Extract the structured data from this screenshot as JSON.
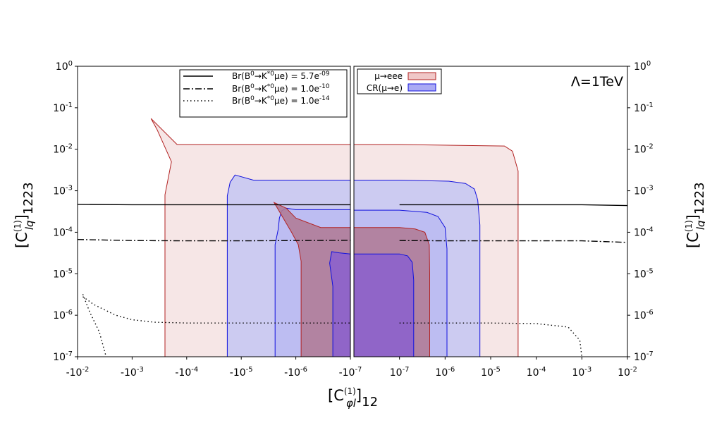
{
  "chart_data": {
    "type": "contour",
    "annotation": "Λ=1TeV",
    "xlabel": {
      "main": "[C",
      "sup": "(1)",
      "sub": "φl",
      "tail": "]",
      "index": "12"
    },
    "ylabel": {
      "main": "[C",
      "sup": "(1)",
      "sub": "lq",
      "tail": "]",
      "index": "1223"
    },
    "x_ticks": [
      {
        "x": -0.01,
        "base": "-10",
        "exp": "-2"
      },
      {
        "x": -0.001,
        "base": "-10",
        "exp": "-3"
      },
      {
        "x": -0.0001,
        "base": "-10",
        "exp": "-4"
      },
      {
        "x": -1e-05,
        "base": "-10",
        "exp": "-5"
      },
      {
        "x": -1e-06,
        "base": "-10",
        "exp": "-6"
      },
      {
        "x": -1e-07,
        "base": "-10",
        "exp": "-7"
      },
      {
        "x": 1e-07,
        "base": "10",
        "exp": "-7"
      },
      {
        "x": 1e-06,
        "base": "10",
        "exp": "-6"
      },
      {
        "x": 1e-05,
        "base": "10",
        "exp": "-5"
      },
      {
        "x": 0.0001,
        "base": "10",
        "exp": "-4"
      },
      {
        "x": 0.001,
        "base": "10",
        "exp": "-3"
      },
      {
        "x": 0.01,
        "base": "10",
        "exp": "-2"
      }
    ],
    "y_ticks": [
      {
        "y": 1,
        "base": "10",
        "exp": "0"
      },
      {
        "y": 0.1,
        "base": "10",
        "exp": "-1"
      },
      {
        "y": 0.01,
        "base": "10",
        "exp": "-2"
      },
      {
        "y": 0.001,
        "base": "10",
        "exp": "-3"
      },
      {
        "y": 0.0001,
        "base": "10",
        "exp": "-4"
      },
      {
        "y": 1e-05,
        "base": "10",
        "exp": "-5"
      },
      {
        "y": 1e-06,
        "base": "10",
        "exp": "-6"
      },
      {
        "y": 1e-07,
        "base": "10",
        "exp": "-7"
      }
    ],
    "x_scale": "symmetric log",
    "y_scale": "log",
    "xlim": [
      -0.01,
      0.01
    ],
    "ylim": [
      1e-07,
      1
    ],
    "colors": {
      "mu_eee_fill": "#f5e3e3",
      "mu_eee_edge": "#b22222",
      "cr_fill": "#c8c8f2",
      "cr_edge": "#1111dd",
      "dark_red_fill": "#b07c98",
      "dark_blue_fill": "#8c62cc"
    },
    "legend_br": [
      {
        "name": "Br(B⁰→K*⁰μe) = 5.7e-09",
        "pre": "Br(B",
        "sup1": "0",
        "mid": "→K",
        "sup2": "*0",
        "post": "μe) = 5.7e",
        "sup3": "-09",
        "style": "solid"
      },
      {
        "name": "Br(B⁰→K*⁰μe) = 1.0e-10",
        "pre": "Br(B",
        "sup1": "0",
        "mid": "→K",
        "sup2": "*0",
        "post": "μe) = 1.0e",
        "sup3": "-10",
        "style": "dashdot"
      },
      {
        "name": "Br(B⁰→K*⁰μe) = 1.0e-14",
        "pre": "Br(B",
        "sup1": "0",
        "mid": "→K",
        "sup2": "*0",
        "post": "μe) = 1.0e",
        "sup3": "-14",
        "style": "dotted"
      }
    ],
    "legend_regions": [
      {
        "name": "μ→eee",
        "fill": "#f0c8c8",
        "edge": "#b22222"
      },
      {
        "name": "CR(μ→e)",
        "fill": "#aaaaf4",
        "edge": "#1111dd"
      }
    ],
    "br_lines": [
      {
        "name": "Br(B⁰→K*⁰μe) = 5.7e-09",
        "style": "solid",
        "x": [
          -0.01,
          -0.001,
          -0.0001,
          -1e-05,
          -1e-06,
          -1e-07,
          1e-07,
          1e-06,
          1e-05,
          0.0001,
          0.001,
          0.01
        ],
        "y": [
          0.00047,
          0.00046,
          0.00046,
          0.00046,
          0.00046,
          0.00046,
          0.00046,
          0.00046,
          0.00046,
          0.00046,
          0.00046,
          0.00044
        ]
      },
      {
        "name": "Br(B⁰→K*⁰μe) = 1.0e-10",
        "style": "dashdot",
        "x": [
          -0.01,
          -0.001,
          -0.0001,
          -1e-05,
          -1e-06,
          -1e-07,
          1e-07,
          1e-06,
          1e-05,
          0.0001,
          0.001,
          0.01
        ],
        "y": [
          6.7e-05,
          6.3e-05,
          6.2e-05,
          6.2e-05,
          6.3e-05,
          6.4e-05,
          6.3e-05,
          6.2e-05,
          6.2e-05,
          6.2e-05,
          6.2e-05,
          5.7e-05
        ]
      },
      {
        "name": "Br(B⁰→K*⁰μe) = 1.0e-14",
        "style": "dotted",
        "x": [
          -0.008,
          -0.005,
          -0.002,
          -0.001,
          -0.0004,
          -0.0001,
          -1e-05,
          -1e-06,
          -1e-07,
          1e-07,
          1e-06,
          1e-05,
          0.0001,
          0.0005,
          0.0009,
          0.001
        ],
        "y": [
          2.8e-06,
          1.8e-06,
          1e-06,
          7.8e-07,
          6.8e-07,
          6.5e-07,
          6.5e-07,
          6.5e-07,
          6.5e-07,
          6.5e-07,
          6.5e-07,
          6.5e-07,
          6.3e-07,
          5.2e-07,
          2.5e-07,
          1e-07
        ]
      },
      {
        "name": "Br(B⁰→K*⁰μe) = 1.0e-14",
        "style": "dotted",
        "x": [
          -0.008,
          -0.006,
          -0.004,
          -0.003
        ],
        "y": [
          3.2e-06,
          1.2e-06,
          4e-07,
          1e-07
        ]
      }
    ],
    "regions": [
      {
        "name": "μ→eee",
        "fill": "#f5e3e3",
        "edge": "#b22222",
        "x": [
          -0.00025,
          -0.00025,
          -0.00019,
          -0.00035,
          -0.00045,
          -0.00015,
          -8e-05,
          -1e-07,
          1e-07,
          2e-05,
          3e-05,
          4e-05,
          4e-05,
          4e-05
        ],
        "y": [
          1e-07,
          0.0008,
          0.005,
          0.03,
          0.055,
          0.013,
          0.013,
          0.013,
          0.013,
          0.012,
          0.009,
          0.003,
          0.0006,
          1e-07
        ]
      },
      {
        "name": "CR(μ→e)",
        "fill": "#c8c8f2",
        "edge": "#1111dd",
        "x": [
          -1.8e-05,
          -1.8e-05,
          -1.6e-05,
          -1.3e-05,
          -6e-06,
          -1e-07,
          1e-07,
          1.2e-06,
          2.8e-06,
          4.4e-06,
          5.2e-06,
          5.8e-06,
          5.8e-06
        ],
        "y": [
          1e-07,
          0.00075,
          0.0016,
          0.0024,
          0.0018,
          0.0018,
          0.0018,
          0.0017,
          0.0015,
          0.0011,
          0.0006,
          0.00015,
          1e-07
        ]
      },
      {
        "name": "CR(μ→e)",
        "fill": "#bbbbf2",
        "edge": "#1111dd",
        "x": [
          -2.4e-06,
          -2.4e-06,
          -2.1e-06,
          -2e-06,
          -1.8e-06,
          -1.5e-06,
          -1e-06,
          -1e-07,
          1e-07,
          4e-07,
          7e-07,
          1e-06,
          1.1e-06,
          1.1e-06
        ],
        "y": [
          1e-07,
          5e-05,
          0.00012,
          0.00022,
          0.00033,
          0.00038,
          0.00035,
          0.00035,
          0.00034,
          0.0003,
          0.00024,
          0.00013,
          4e-05,
          1e-07
        ]
      },
      {
        "name": "μ→eee",
        "fill": "#b07c98",
        "edge": "#b22222",
        "x": [
          -8e-07,
          -8e-07,
          -9e-07,
          -1.2e-06,
          -2.5e-06,
          -1.5e-06,
          -1e-06,
          -3.5e-07,
          -1e-07,
          1e-07,
          2.2e-07,
          3.6e-07,
          4.5e-07,
          4.6e-07,
          4.6e-07
        ],
        "y": [
          1e-07,
          2e-05,
          5e-05,
          0.0001,
          0.00052,
          0.00038,
          0.00022,
          0.00013,
          0.00013,
          0.00013,
          0.00012,
          0.0001,
          5e-05,
          1e-05,
          1e-07
        ]
      },
      {
        "name": "CR(μ→e)",
        "fill": "#8c62cc",
        "edge": "#1111dd",
        "x": [
          -2.1e-07,
          -2.1e-07,
          -2.4e-07,
          -2.2e-07,
          -1.6e-07,
          -1e-07,
          1e-07,
          1.5e-07,
          1.9e-07,
          2.05e-07,
          2.05e-07
        ],
        "y": [
          1e-07,
          5e-06,
          1.8e-05,
          3.4e-05,
          3.2e-05,
          3e-05,
          3e-05,
          2.7e-05,
          1.9e-05,
          7e-06,
          1e-07
        ]
      }
    ]
  }
}
